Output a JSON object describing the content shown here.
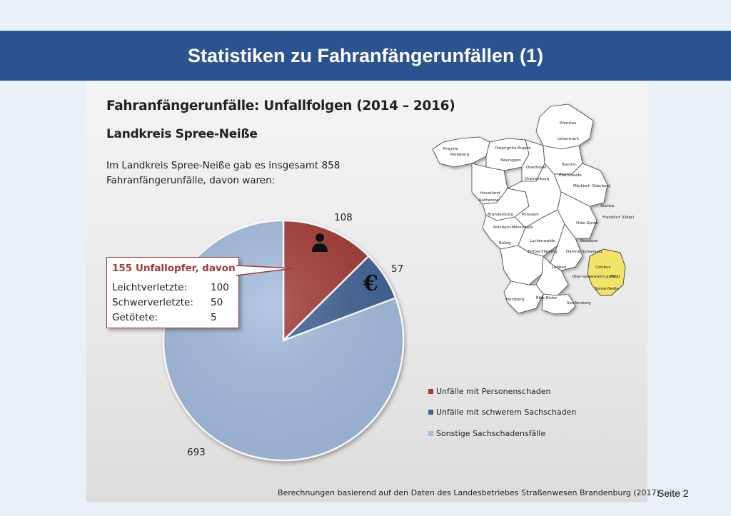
{
  "header": {
    "title": "Statistiken zu Fahranfängerunfällen (1)"
  },
  "slide": {
    "heading": "Fahranfängerunfälle: Unfallfolgen (2014 – 2016)",
    "subheading": "Landkreis Spree-Neiße",
    "description": "Im Landkreis Spree-Neiße gab es insgesamt 858 Fahranfängerunfälle, davon waren:",
    "source": "Berechnungen basierend auf den Daten des Landesbetriebes Straßenwesen Brandenburg (2017)",
    "page": "Seite 2"
  },
  "callout": {
    "title": "155 Unfallopfer, davon",
    "rows": [
      {
        "label": "Leichtverletzte:",
        "value": "100"
      },
      {
        "label": "Schwerverletzte:",
        "value": "50"
      },
      {
        "label": "Getötete:",
        "value": "5"
      }
    ]
  },
  "chart_data": {
    "type": "pie",
    "categories": [
      "Unfälle mit Personenschaden",
      "Unfälle mit schwerem Sachschaden",
      "Sonstige Sachschadensfälle"
    ],
    "values": [
      108,
      57,
      693
    ],
    "value_labels": [
      "108",
      "57",
      "693"
    ],
    "colors": [
      "#a23a35",
      "#3f6396",
      "#a4bde0"
    ],
    "icons": [
      "person-icon",
      "euro-icon",
      ""
    ],
    "legend_position": "bottom-right"
  },
  "map": {
    "highlight_color": "#f2e36b",
    "highlighted": "Spree-Neiße",
    "labels": [
      "Prignitz",
      "Perleberg",
      "Ostprignitz-Ruppin",
      "Neuruppin",
      "Uckermark",
      "Prenzlau",
      "Oberhavel",
      "Oranienburg",
      "Barnim",
      "Eberswalde",
      "Havelland",
      "Rathenow",
      "Märkisch Oderland",
      "Seelow",
      "Brandenburg",
      "Potsdam",
      "Frankfurt (Oder)",
      "Potsdam-Mittelmark",
      "Belzig",
      "Oder-Spree",
      "Beeskow",
      "Luckenwalde",
      "Teltow-Fläming",
      "Dahme-Spreewald",
      "Lübben",
      "Cottbus",
      "Forst",
      "Ober-spreewald-Lausitz",
      "Spree-Neiße",
      "Herzberg",
      "Elbe-Elster",
      "Senftenberg"
    ]
  }
}
